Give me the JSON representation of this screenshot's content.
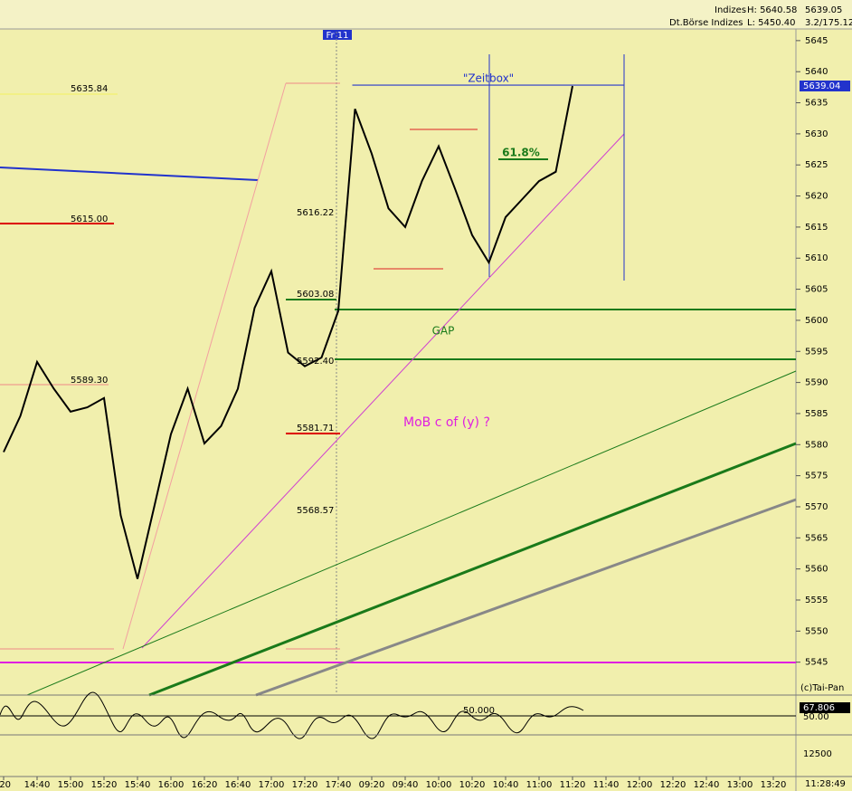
{
  "header": {
    "market": "Indizes",
    "exchange": "Dt.Börse Indizes",
    "high": "H: 5640.58",
    "low": "L: 5450.40",
    "last": "5639.05",
    "change": "3.2/175.12"
  },
  "chart_data": {
    "type": "line",
    "categories": [
      ":20",
      null,
      "14:40",
      null,
      "15:00",
      null,
      "15:20",
      null,
      "15:40",
      null,
      "16:00",
      null,
      "16:20",
      null,
      "16:40",
      null,
      "17:00",
      null,
      "17:20",
      null,
      "17:40",
      null,
      "09:20",
      null,
      "09:40",
      null,
      "10:00",
      null,
      "10:20",
      null,
      "10:40",
      null,
      "11:00",
      null,
      "11:20",
      null,
      "11:40",
      null,
      "12:00",
      null,
      "12:20",
      null,
      "12:40",
      null,
      "13:00",
      null,
      "13:20"
    ],
    "values": [
      5578.8,
      5584.6,
      5593.3,
      5589,
      5585.3,
      5586,
      5587.5,
      5568.6,
      5558.4,
      5570,
      5581.7,
      5589,
      5580.2,
      5583,
      5589,
      5602,
      5607.9,
      5594.8,
      5592.6,
      5594,
      5601.5,
      5634,
      5626.8,
      5618,
      5615,
      5622.4,
      5628,
      5621,
      5613.7,
      5609.3,
      5616.6,
      5619.5,
      5622.4,
      5623.9,
      5637.7,
      null,
      null,
      null,
      null,
      null,
      null,
      null,
      null,
      null,
      null,
      null,
      null
    ],
    "color": "#000000",
    "ylim": [
      5540,
      5646
    ],
    "yticks": [
      5545,
      5550,
      5555,
      5560,
      5565,
      5570,
      5575,
      5580,
      5585,
      5590,
      5595,
      5600,
      5605,
      5610,
      5615,
      5620,
      5625,
      5630,
      5635,
      5640,
      5645
    ],
    "current_price": "5639.04",
    "day_marker": "Fr 11",
    "annotations": {
      "zeitbox": "\"Zeitbox\"",
      "fib": "61.8%",
      "gap": "GAP",
      "wave": "MoB c of (y) ?",
      "copyright": "(c)Tai-Pan"
    },
    "price_labels": [
      "5635.84",
      "5615.00",
      "5589.30",
      "5616.22",
      "5603.08",
      "5592.40",
      "5581.71",
      "5568.57"
    ],
    "oscillator": {
      "level": "50.000",
      "value": "67.806",
      "axis": "50.00"
    },
    "volume_axis": "12500",
    "clock": "11:28:49"
  }
}
